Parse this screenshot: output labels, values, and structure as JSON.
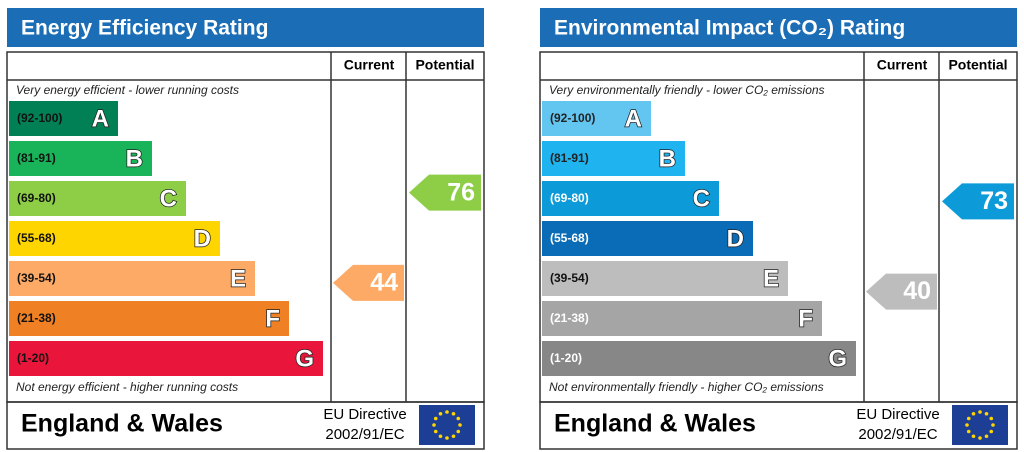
{
  "panels": [
    {
      "title": "Energy Efficiency Rating",
      "header": {
        "current": "Current",
        "potential": "Potential"
      },
      "top_note": "Very energy efficient - lower running costs",
      "bottom_note": "Not energy efficient - higher running costs",
      "bands": [
        {
          "range": "(92-100)",
          "letter": "A",
          "color": "#008054"
        },
        {
          "range": "(81-91)",
          "letter": "B",
          "color": "#19b459"
        },
        {
          "range": "(69-80)",
          "letter": "C",
          "color": "#8dce46"
        },
        {
          "range": "(55-68)",
          "letter": "D",
          "color": "#ffd500"
        },
        {
          "range": "(39-54)",
          "letter": "E",
          "color": "#fcaa65"
        },
        {
          "range": "(21-38)",
          "letter": "F",
          "color": "#ef8023"
        },
        {
          "range": "(1-20)",
          "letter": "G",
          "color": "#e9153b"
        }
      ],
      "current": {
        "value": 44,
        "color": "#fcaa65"
      },
      "potential": {
        "value": 76,
        "color": "#8dce46"
      },
      "footer": {
        "region": "England & Wales",
        "directive": "EU Directive",
        "code": "2002/91/EC"
      }
    },
    {
      "title": "Environmental Impact (CO₂) Rating",
      "header": {
        "current": "Current",
        "potential": "Potential"
      },
      "top_note": "Very environmentally friendly - lower CO₂ emissions",
      "bottom_note": "Not environmentally friendly - higher CO₂ emissions",
      "bands": [
        {
          "range": "(92-100)",
          "letter": "A",
          "color": "#63c6f0"
        },
        {
          "range": "(81-91)",
          "letter": "B",
          "color": "#1fb4ef"
        },
        {
          "range": "(69-80)",
          "letter": "C",
          "color": "#0c9bd8"
        },
        {
          "range": "(55-68)",
          "letter": "D",
          "color": "#0a6cb6"
        },
        {
          "range": "(39-54)",
          "letter": "E",
          "color": "#bdbdbd"
        },
        {
          "range": "(21-38)",
          "letter": "F",
          "color": "#a5a5a5"
        },
        {
          "range": "(1-20)",
          "letter": "G",
          "color": "#878787"
        }
      ],
      "current": {
        "value": 40,
        "color": "#bdbdbd"
      },
      "potential": {
        "value": 73,
        "color": "#0c9bd8"
      },
      "footer": {
        "region": "England & Wales",
        "directive": "EU Directive",
        "code": "2002/91/EC"
      }
    }
  ]
}
